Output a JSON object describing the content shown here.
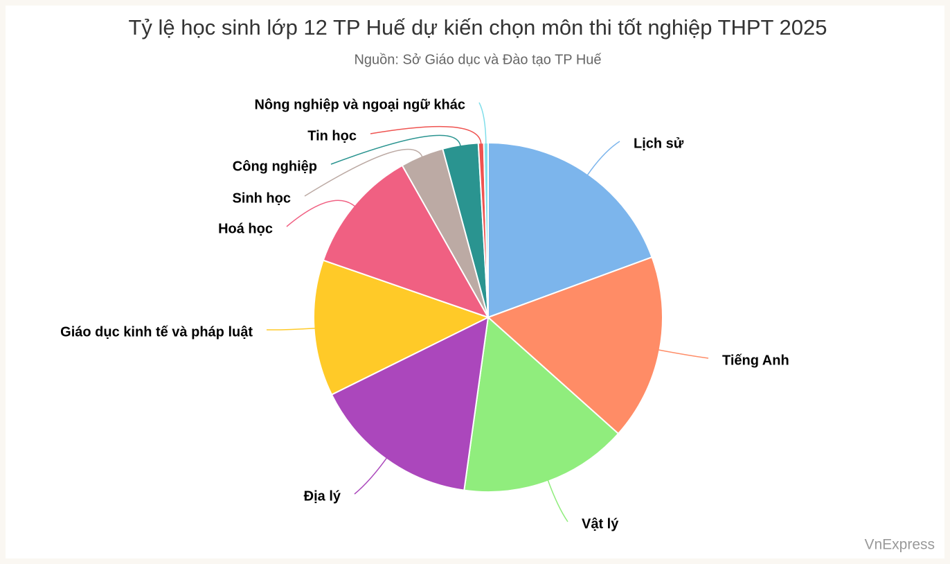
{
  "chart_data": {
    "type": "pie",
    "title": "Tỷ lệ học sinh lớp 12 TP Huế dự kiến chọn môn thi tốt nghiệp THPT 2025",
    "subtitle": "Nguồn: Sở Giáo dục và Đào tạo TP Huế",
    "credit": "VnExpress",
    "categories": [
      "Lịch sử",
      "Tiếng Anh",
      "Vật lý",
      "Địa lý",
      "Giáo dục kinh tế và pháp luật",
      "Hoá học",
      "Sinh học",
      "Công nghiệp",
      "Tin học",
      "Nông nghiệp và ngoại ngữ khác"
    ],
    "values": [
      19.4,
      17.2,
      15.6,
      15.5,
      12.6,
      11.5,
      4.0,
      3.3,
      0.5,
      0.4
    ],
    "colors": [
      "#7cb5ec",
      "#ff8c66",
      "#90ed7d",
      "#ab47bc",
      "#ffca28",
      "#f06082",
      "#bcaaa4",
      "#2a9490",
      "#ef5350",
      "#80deea"
    ]
  }
}
